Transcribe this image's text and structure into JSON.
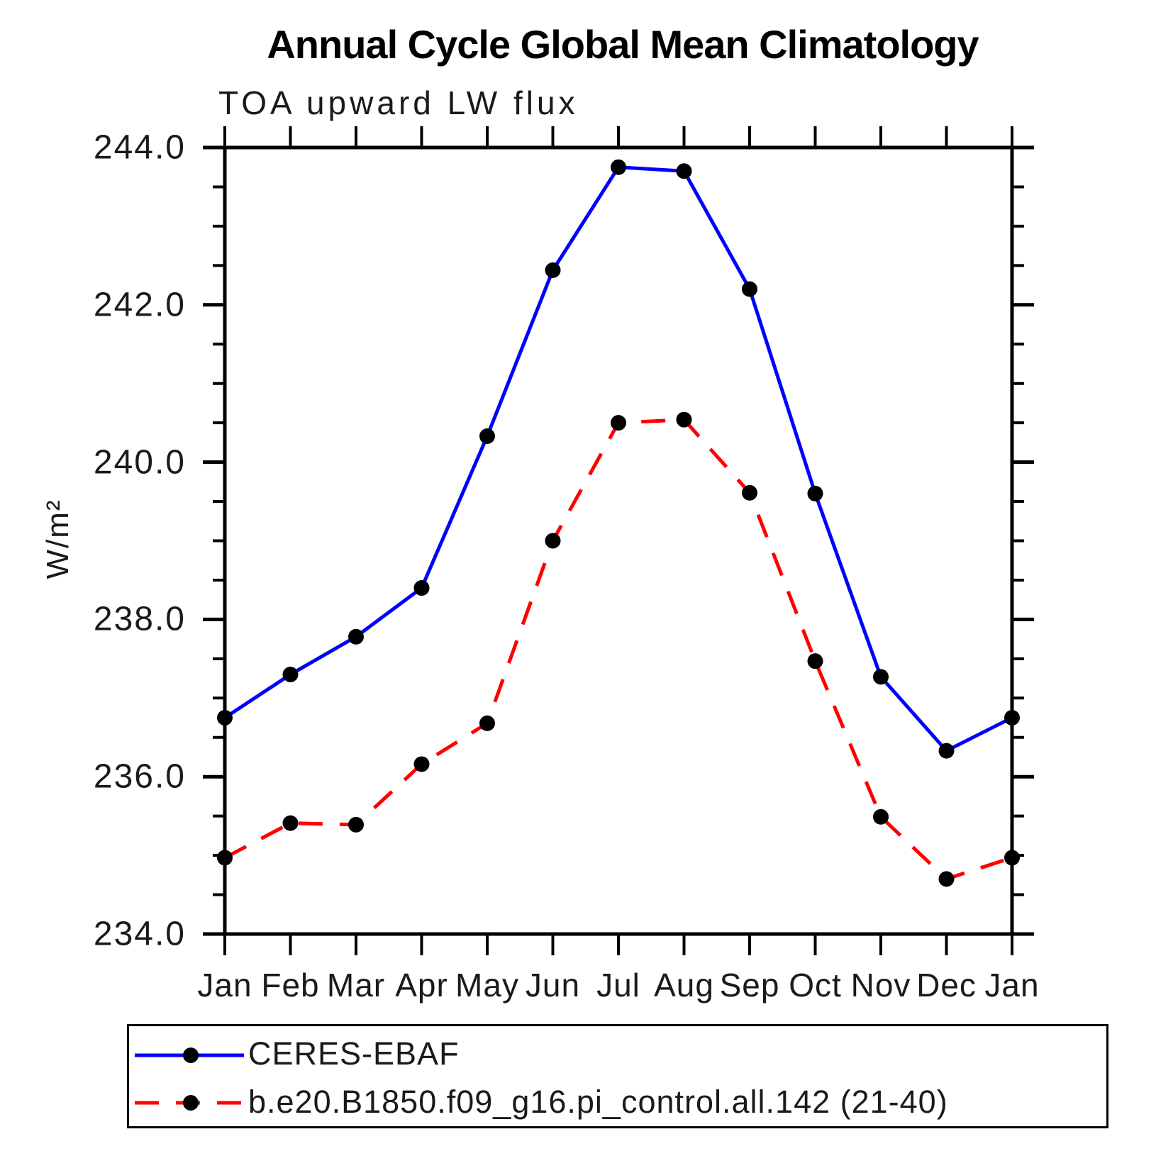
{
  "header": {
    "title": "Annual Cycle Global Mean Climatology",
    "subtitle": "TOA upward LW flux"
  },
  "chart_data": {
    "type": "line",
    "title": "Annual Cycle Global Mean Climatology",
    "subtitle": "TOA upward LW flux",
    "xlabel": "",
    "ylabel": "W/m²",
    "categories": [
      "Jan",
      "Feb",
      "Mar",
      "Apr",
      "May",
      "Jun",
      "Jul",
      "Aug",
      "Sep",
      "Oct",
      "Nov",
      "Dec",
      "Jan"
    ],
    "series": [
      {
        "name": "CERES-EBAF",
        "color": "#0000ff",
        "line_style": "solid",
        "marker": "circle",
        "marker_color": "#000000",
        "values": [
          236.75,
          237.3,
          237.78,
          238.4,
          240.33,
          242.44,
          243.75,
          243.7,
          242.2,
          239.6,
          237.27,
          236.33,
          236.75
        ]
      },
      {
        "name": "b.e20.B1850.f09_g16.pi_control.all.142 (21-40)",
        "color": "#ff0000",
        "line_style": "dashed",
        "marker": "circle",
        "marker_color": "#000000",
        "values": [
          234.97,
          235.41,
          235.39,
          236.16,
          236.68,
          239.0,
          240.5,
          240.54,
          239.61,
          237.47,
          235.49,
          234.7,
          234.97
        ]
      }
    ],
    "ylim": [
      234.0,
      244.0
    ],
    "ytick_major": [
      234.0,
      236.0,
      238.0,
      240.0,
      242.0,
      244.0
    ],
    "ytick_minor_step": 0.5,
    "ytick_labels": [
      "244.0",
      "242.0",
      "240.0",
      "238.0",
      "236.0",
      "234.0"
    ],
    "grid": false,
    "tick_direction": "out",
    "legend_position": "below",
    "axis_color": "#000000"
  }
}
